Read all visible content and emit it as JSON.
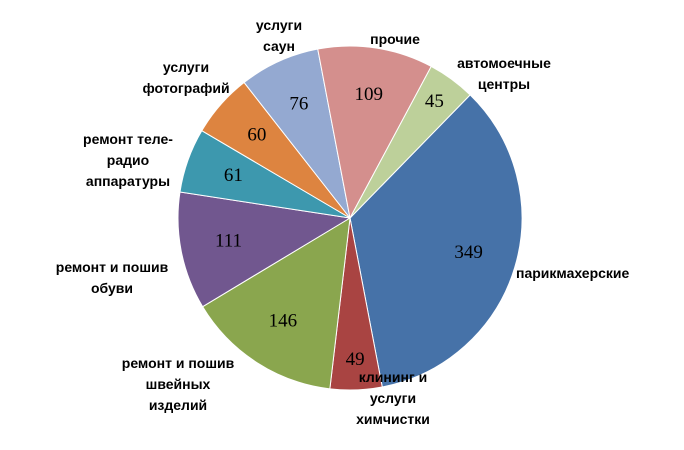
{
  "chart_data": {
    "type": "pie",
    "categories": [
      "парикмахерские",
      "клининг и\nуслуги\nхимчистки",
      "ремонт и пошив\nшвейных\nизделий",
      "ремонт и пошив\nобуви",
      "ремонт  теле-\nрадио\nаппаратуры",
      "услуги\nфотографий",
      "услуги\nсаун",
      "прочие",
      "автомоечные\nцентры"
    ],
    "values": [
      349,
      49,
      146,
      111,
      61,
      60,
      76,
      109,
      45
    ],
    "colors": [
      "#4672a8",
      "#a94442",
      "#8aa64e",
      "#71578f",
      "#3d98ae",
      "#dd8440",
      "#94a9d1",
      "#d48f8d",
      "#bdd09a"
    ]
  }
}
